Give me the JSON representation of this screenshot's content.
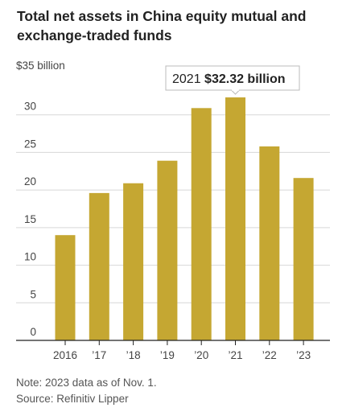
{
  "title": "Total net assets in China equity mutual and exchange-traded funds",
  "y_unit_label": "$35 billion",
  "annotation": {
    "year": "2021",
    "value_text": "$32.32 billion"
  },
  "note": "Note: 2023 data as of Nov. 1.",
  "source": "Source: Refinitiv Lipper",
  "colors": {
    "bar": "#c5a732",
    "axis": "#222222",
    "grid": "#d7d7d7",
    "annotation_border": "#bbbbbb"
  },
  "chart_data": {
    "type": "bar",
    "categories": [
      "2016",
      "’17",
      "’18",
      "’19",
      "’20",
      "’21",
      "’22",
      "’23"
    ],
    "values": [
      14.0,
      19.6,
      20.9,
      23.9,
      30.9,
      32.32,
      25.8,
      21.6
    ],
    "title": "Total net assets in China equity mutual and exchange-traded funds",
    "ylabel": "$35 billion",
    "ylim": [
      0,
      35
    ],
    "yticks": [
      "0",
      "5",
      "10",
      "15",
      "20",
      "25",
      "30"
    ],
    "grid": true
  }
}
